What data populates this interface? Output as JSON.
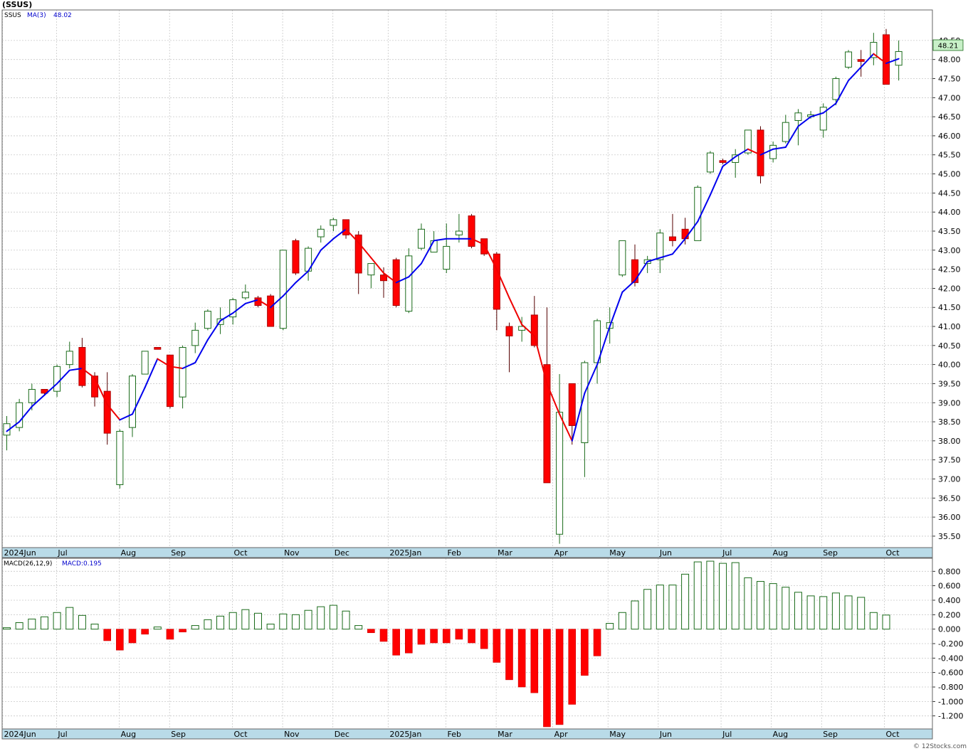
{
  "header": {
    "symbol": "(SSUS)",
    "legend_symbol": "SSUS",
    "legend_ma": "MA(3)",
    "legend_ma_value": "48.02",
    "last_price": "48.21"
  },
  "macd_header": {
    "label": "MACD(26,12,9)",
    "value_text": "MACD:0.195"
  },
  "watermark": "© 12Stocks.com",
  "colors": {
    "up": "#1a6b1a",
    "down": "#ff0000",
    "ma_up": "#0000ee",
    "ma_down": "#ee0000",
    "axis_band": "#b9dbe8",
    "last_price_bg": "#c8f0c8"
  },
  "chart_data": [
    {
      "type": "candlestick",
      "title": "",
      "ylim": [
        35.2,
        49.3
      ],
      "y_ticks": [
        "35.50",
        "36.00",
        "36.50",
        "37.00",
        "37.50",
        "38.00",
        "38.50",
        "39.00",
        "39.50",
        "40.00",
        "40.50",
        "41.00",
        "41.50",
        "42.00",
        "42.50",
        "43.00",
        "43.50",
        "44.00",
        "44.50",
        "45.00",
        "45.50",
        "46.00",
        "46.50",
        "47.00",
        "47.50",
        "48.00",
        "48.50"
      ],
      "x_labels": [
        {
          "label": "2024Jun",
          "week": 0
        },
        {
          "label": "Jul",
          "week": 4.3
        },
        {
          "label": "Aug",
          "week": 9.3
        },
        {
          "label": "Sep",
          "week": 13.3
        },
        {
          "label": "Oct",
          "week": 18.3
        },
        {
          "label": "Nov",
          "week": 22.3
        },
        {
          "label": "Dec",
          "week": 26.3
        },
        {
          "label": "2025Jan",
          "week": 30.7
        },
        {
          "label": "Feb",
          "week": 35.3
        },
        {
          "label": "Mar",
          "week": 39.3
        },
        {
          "label": "Apr",
          "week": 43.8
        },
        {
          "label": "May",
          "week": 48.2
        },
        {
          "label": "Jun",
          "week": 52.2
        },
        {
          "label": "Jul",
          "week": 57.2
        },
        {
          "label": "Aug",
          "week": 61.2
        },
        {
          "label": "Sep",
          "week": 65.2
        },
        {
          "label": "Oct",
          "week": 70.2
        }
      ],
      "candles": [
        {
          "o": 38.15,
          "h": 38.65,
          "l": 37.75,
          "c": 38.45
        },
        {
          "o": 38.35,
          "h": 39.1,
          "l": 38.25,
          "c": 39.0
        },
        {
          "o": 39.0,
          "h": 39.5,
          "l": 38.8,
          "c": 39.35
        },
        {
          "o": 39.35,
          "h": 39.3,
          "l": 39.2,
          "c": 39.25
        },
        {
          "o": 39.3,
          "h": 40.0,
          "l": 39.15,
          "c": 39.95
        },
        {
          "o": 40.0,
          "h": 40.6,
          "l": 39.9,
          "c": 40.35
        },
        {
          "o": 40.45,
          "h": 40.7,
          "l": 39.4,
          "c": 39.45
        },
        {
          "o": 39.7,
          "h": 39.8,
          "l": 38.9,
          "c": 39.15
        },
        {
          "o": 39.3,
          "h": 39.8,
          "l": 37.9,
          "c": 38.2
        },
        {
          "o": 36.85,
          "h": 38.3,
          "l": 36.75,
          "c": 38.25
        },
        {
          "o": 38.35,
          "h": 39.75,
          "l": 38.1,
          "c": 39.7
        },
        {
          "o": 39.75,
          "h": 40.35,
          "l": 39.75,
          "c": 40.35
        },
        {
          "o": 40.45,
          "h": 40.45,
          "l": 40.4,
          "c": 40.4
        },
        {
          "o": 40.25,
          "h": 40.25,
          "l": 38.85,
          "c": 38.9
        },
        {
          "o": 39.15,
          "h": 40.5,
          "l": 38.85,
          "c": 40.45
        },
        {
          "o": 40.5,
          "h": 41.1,
          "l": 40.3,
          "c": 40.9
        },
        {
          "o": 40.95,
          "h": 41.45,
          "l": 40.9,
          "c": 41.4
        },
        {
          "o": 41.05,
          "h": 41.5,
          "l": 40.8,
          "c": 41.2
        },
        {
          "o": 41.25,
          "h": 41.75,
          "l": 41.05,
          "c": 41.7
        },
        {
          "o": 41.75,
          "h": 42.1,
          "l": 41.7,
          "c": 41.9
        },
        {
          "o": 41.75,
          "h": 41.8,
          "l": 41.5,
          "c": 41.55
        },
        {
          "o": 41.8,
          "h": 41.85,
          "l": 41.0,
          "c": 41.0
        },
        {
          "o": 40.95,
          "h": 43.0,
          "l": 40.9,
          "c": 43.0
        },
        {
          "o": 43.25,
          "h": 43.3,
          "l": 42.35,
          "c": 42.4
        },
        {
          "o": 42.45,
          "h": 43.1,
          "l": 42.2,
          "c": 43.05
        },
        {
          "o": 43.35,
          "h": 43.65,
          "l": 43.2,
          "c": 43.55
        },
        {
          "o": 43.65,
          "h": 43.85,
          "l": 43.5,
          "c": 43.8
        },
        {
          "o": 43.8,
          "h": 43.8,
          "l": 43.3,
          "c": 43.4
        },
        {
          "o": 43.4,
          "h": 43.5,
          "l": 41.85,
          "c": 42.4
        },
        {
          "o": 42.35,
          "h": 42.65,
          "l": 42.0,
          "c": 42.65
        },
        {
          "o": 42.35,
          "h": 42.55,
          "l": 41.75,
          "c": 42.2
        },
        {
          "o": 42.75,
          "h": 42.8,
          "l": 41.5,
          "c": 41.55
        },
        {
          "o": 41.4,
          "h": 43.05,
          "l": 41.35,
          "c": 42.85
        },
        {
          "o": 43.05,
          "h": 43.7,
          "l": 43.0,
          "c": 43.55
        },
        {
          "o": 42.95,
          "h": 43.5,
          "l": 42.95,
          "c": 43.25
        },
        {
          "o": 42.5,
          "h": 43.7,
          "l": 42.4,
          "c": 43.1
        },
        {
          "o": 43.4,
          "h": 43.95,
          "l": 43.2,
          "c": 43.5
        },
        {
          "o": 43.9,
          "h": 43.95,
          "l": 43.05,
          "c": 43.1
        },
        {
          "o": 43.3,
          "h": 43.3,
          "l": 42.85,
          "c": 42.9
        },
        {
          "o": 42.9,
          "h": 42.95,
          "l": 40.9,
          "c": 41.45
        },
        {
          "o": 41.0,
          "h": 41.1,
          "l": 39.8,
          "c": 40.75
        },
        {
          "o": 40.9,
          "h": 41.25,
          "l": 40.6,
          "c": 41.0
        },
        {
          "o": 41.3,
          "h": 41.8,
          "l": 40.45,
          "c": 40.5
        },
        {
          "o": 40.0,
          "h": 41.5,
          "l": 36.9,
          "c": 36.9
        },
        {
          "o": 35.55,
          "h": 39.75,
          "l": 35.3,
          "c": 38.75
        },
        {
          "o": 39.5,
          "h": 39.5,
          "l": 37.9,
          "c": 38.4
        },
        {
          "o": 37.95,
          "h": 40.1,
          "l": 37.05,
          "c": 40.05
        },
        {
          "o": 40.05,
          "h": 41.2,
          "l": 39.5,
          "c": 41.15
        },
        {
          "o": 40.95,
          "h": 41.5,
          "l": 40.55,
          "c": 41.1
        },
        {
          "o": 42.35,
          "h": 43.25,
          "l": 42.3,
          "c": 43.25
        },
        {
          "o": 42.75,
          "h": 43.15,
          "l": 42.05,
          "c": 42.15
        },
        {
          "o": 42.65,
          "h": 42.85,
          "l": 42.4,
          "c": 42.75
        },
        {
          "o": 42.75,
          "h": 43.55,
          "l": 42.4,
          "c": 43.45
        },
        {
          "o": 43.35,
          "h": 43.95,
          "l": 43.1,
          "c": 43.25
        },
        {
          "o": 43.55,
          "h": 43.85,
          "l": 43.15,
          "c": 43.3
        },
        {
          "o": 43.25,
          "h": 44.7,
          "l": 43.25,
          "c": 44.65
        },
        {
          "o": 45.05,
          "h": 45.6,
          "l": 45.0,
          "c": 45.55
        },
        {
          "o": 45.35,
          "h": 45.4,
          "l": 45.25,
          "c": 45.3
        },
        {
          "o": 45.3,
          "h": 45.65,
          "l": 44.9,
          "c": 45.5
        },
        {
          "o": 45.55,
          "h": 46.15,
          "l": 45.5,
          "c": 46.15
        },
        {
          "o": 46.15,
          "h": 46.25,
          "l": 44.75,
          "c": 44.95
        },
        {
          "o": 45.4,
          "h": 45.85,
          "l": 45.3,
          "c": 45.75
        },
        {
          "o": 45.85,
          "h": 46.55,
          "l": 45.8,
          "c": 46.35
        },
        {
          "o": 46.4,
          "h": 46.7,
          "l": 45.75,
          "c": 46.6
        },
        {
          "o": 46.5,
          "h": 46.65,
          "l": 46.45,
          "c": 46.55
        },
        {
          "o": 46.15,
          "h": 46.85,
          "l": 45.95,
          "c": 46.75
        },
        {
          "o": 46.95,
          "h": 47.55,
          "l": 46.8,
          "c": 47.5
        },
        {
          "o": 47.8,
          "h": 48.25,
          "l": 47.75,
          "c": 48.2
        },
        {
          "o": 48.0,
          "h": 48.25,
          "l": 47.55,
          "c": 47.95
        },
        {
          "o": 48.05,
          "h": 48.7,
          "l": 47.85,
          "c": 48.45
        },
        {
          "o": 48.65,
          "h": 48.8,
          "l": 47.35,
          "c": 47.35
        },
        {
          "o": 47.85,
          "h": 48.5,
          "l": 47.45,
          "c": 48.21
        }
      ],
      "ma3": [
        38.25,
        38.5,
        38.9,
        39.2,
        39.5,
        39.85,
        39.9,
        39.65,
        38.95,
        38.55,
        38.7,
        39.4,
        40.15,
        39.95,
        39.9,
        40.05,
        40.65,
        41.15,
        41.35,
        41.6,
        41.7,
        41.5,
        41.8,
        42.15,
        42.45,
        43.0,
        43.3,
        43.55,
        43.2,
        42.8,
        42.4,
        42.15,
        42.3,
        42.65,
        43.25,
        43.3,
        43.3,
        43.3,
        43.15,
        42.5,
        41.75,
        41.05,
        40.75,
        39.5,
        38.7,
        38.0,
        39.25,
        40.0,
        41.0,
        41.9,
        42.2,
        42.7,
        42.8,
        42.9,
        43.3,
        43.75,
        44.45,
        45.2,
        45.45,
        45.65,
        45.5,
        45.65,
        45.7,
        46.25,
        46.5,
        46.6,
        46.85,
        47.45,
        47.8,
        48.15,
        47.9,
        48.02
      ]
    },
    {
      "type": "bar",
      "title": "MACD(26,12,9)",
      "ylim": [
        -1.38,
        0.98
      ],
      "y_ticks": [
        "0.800",
        "0.600",
        "0.400",
        "0.200",
        "0.000",
        "-0.200",
        "-0.400",
        "-0.600",
        "-0.800",
        "-1.000",
        "-1.200"
      ],
      "values": [
        0.02,
        0.09,
        0.14,
        0.17,
        0.23,
        0.3,
        0.19,
        0.07,
        -0.16,
        -0.29,
        -0.19,
        -0.07,
        0.03,
        -0.14,
        -0.04,
        0.05,
        0.13,
        0.18,
        0.23,
        0.27,
        0.22,
        0.07,
        0.21,
        0.2,
        0.26,
        0.31,
        0.33,
        0.25,
        0.05,
        -0.05,
        -0.17,
        -0.36,
        -0.33,
        -0.21,
        -0.19,
        -0.19,
        -0.14,
        -0.19,
        -0.27,
        -0.46,
        -0.7,
        -0.8,
        -0.88,
        -1.35,
        -1.32,
        -1.04,
        -0.64,
        -0.37,
        0.08,
        0.23,
        0.39,
        0.55,
        0.61,
        0.61,
        0.76,
        0.93,
        0.94,
        0.91,
        0.92,
        0.71,
        0.66,
        0.63,
        0.58,
        0.51,
        0.46,
        0.45,
        0.5,
        0.46,
        0.44,
        0.23,
        0.195
      ]
    }
  ]
}
